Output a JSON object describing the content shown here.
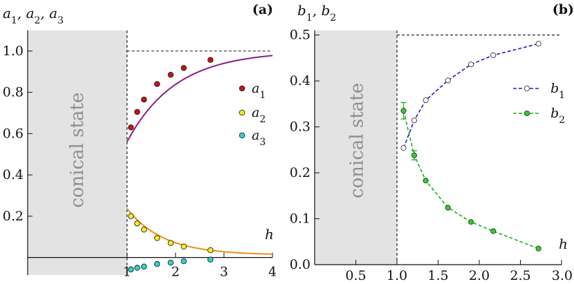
{
  "chart_data": [
    {
      "type": "scatter",
      "panel_label": "(a)",
      "ylabel_parts": [
        "a",
        "1",
        ", a",
        "2",
        ", a",
        "3"
      ],
      "xlabel": "h",
      "xlim": [
        -1.05,
        4
      ],
      "ylim": [
        -0.085,
        1.1
      ],
      "xticks": [
        1,
        2,
        3,
        4
      ],
      "yticks": [
        0.2,
        0.4,
        0.6,
        0.8,
        1.0
      ],
      "xtick_labels": [
        "1",
        "2",
        "3",
        "4"
      ],
      "ytick_labels": [
        "0.2",
        "0.4",
        "0.6",
        "0.8",
        "1.0"
      ],
      "shaded_region": {
        "x": [
          -1.05,
          1
        ],
        "label": "conical state",
        "color": "#e3e3e3"
      },
      "reference_lines": {
        "vertical_x": 1,
        "horizontal_y": 1.0
      },
      "grid": false,
      "legend": "right",
      "series": [
        {
          "name": "a1",
          "label_base": "a",
          "label_sub": "1",
          "color": "#cc1111",
          "curve_color": "#8b1a89",
          "x": [
            1.08,
            1.21,
            1.35,
            1.62,
            1.9,
            2.17,
            2.72
          ],
          "y": [
            0.63,
            0.705,
            0.765,
            0.84,
            0.885,
            0.918,
            0.957
          ]
        },
        {
          "name": "a2",
          "label_base": "a",
          "label_sub": "2",
          "color": "#f3ef1f",
          "curve_color": "#f28c16",
          "x": [
            1.08,
            1.21,
            1.35,
            1.62,
            1.9,
            2.17,
            2.72
          ],
          "y": [
            0.2,
            0.165,
            0.135,
            0.094,
            0.07,
            0.053,
            0.035
          ]
        },
        {
          "name": "a3",
          "label_base": "a",
          "label_sub": "3",
          "color": "#2fd4c8",
          "curve_color": null,
          "x": [
            1.08,
            1.21,
            1.35,
            1.62,
            1.9,
            2.17,
            2.72
          ],
          "y": [
            -0.058,
            -0.05,
            -0.044,
            -0.032,
            -0.025,
            -0.018,
            -0.01
          ]
        }
      ]
    },
    {
      "type": "line",
      "panel_label": "(b)",
      "ylabel_parts": [
        "b",
        "1",
        ", b",
        "2"
      ],
      "xlabel": "h",
      "xlim": [
        0,
        3
      ],
      "ylim": [
        0,
        0.51
      ],
      "xticks": [
        0.5,
        1.0,
        1.5,
        2.0,
        2.5,
        3.0
      ],
      "yticks": [
        0.0,
        0.1,
        0.2,
        0.3,
        0.4,
        0.5
      ],
      "xtick_labels": [
        "0.5",
        "1.0",
        "1.5",
        "2.0",
        "2.5",
        "3.0"
      ],
      "ytick_labels": [
        "0.0",
        "0.1",
        "0.2",
        "0.3",
        "0.4",
        "0.5"
      ],
      "shaded_region": {
        "x": [
          0,
          1
        ],
        "label": "conical state",
        "color": "#e3e3e3"
      },
      "reference_lines": {
        "vertical_x": 1,
        "horizontal_y": 0.5
      },
      "grid": false,
      "legend": "right",
      "series": [
        {
          "name": "b1",
          "label_base": "b",
          "label_sub": "1",
          "color": "#1a1ad0",
          "marker_fill": "#ffffff",
          "x": [
            1.08,
            1.21,
            1.35,
            1.62,
            1.9,
            2.17,
            2.72
          ],
          "y": [
            0.254,
            0.314,
            0.358,
            0.401,
            0.436,
            0.456,
            0.481
          ]
        },
        {
          "name": "b2",
          "label_base": "b",
          "label_sub": "2",
          "color": "#1fae1f",
          "marker_fill": "#2ad12a",
          "x": [
            1.08,
            1.21,
            1.35,
            1.62,
            1.9,
            2.17,
            2.72
          ],
          "y": [
            0.335,
            0.238,
            0.183,
            0.124,
            0.093,
            0.073,
            0.035
          ],
          "error": [
            0.018,
            0.01,
            0,
            0,
            0,
            0,
            0
          ]
        }
      ]
    }
  ]
}
